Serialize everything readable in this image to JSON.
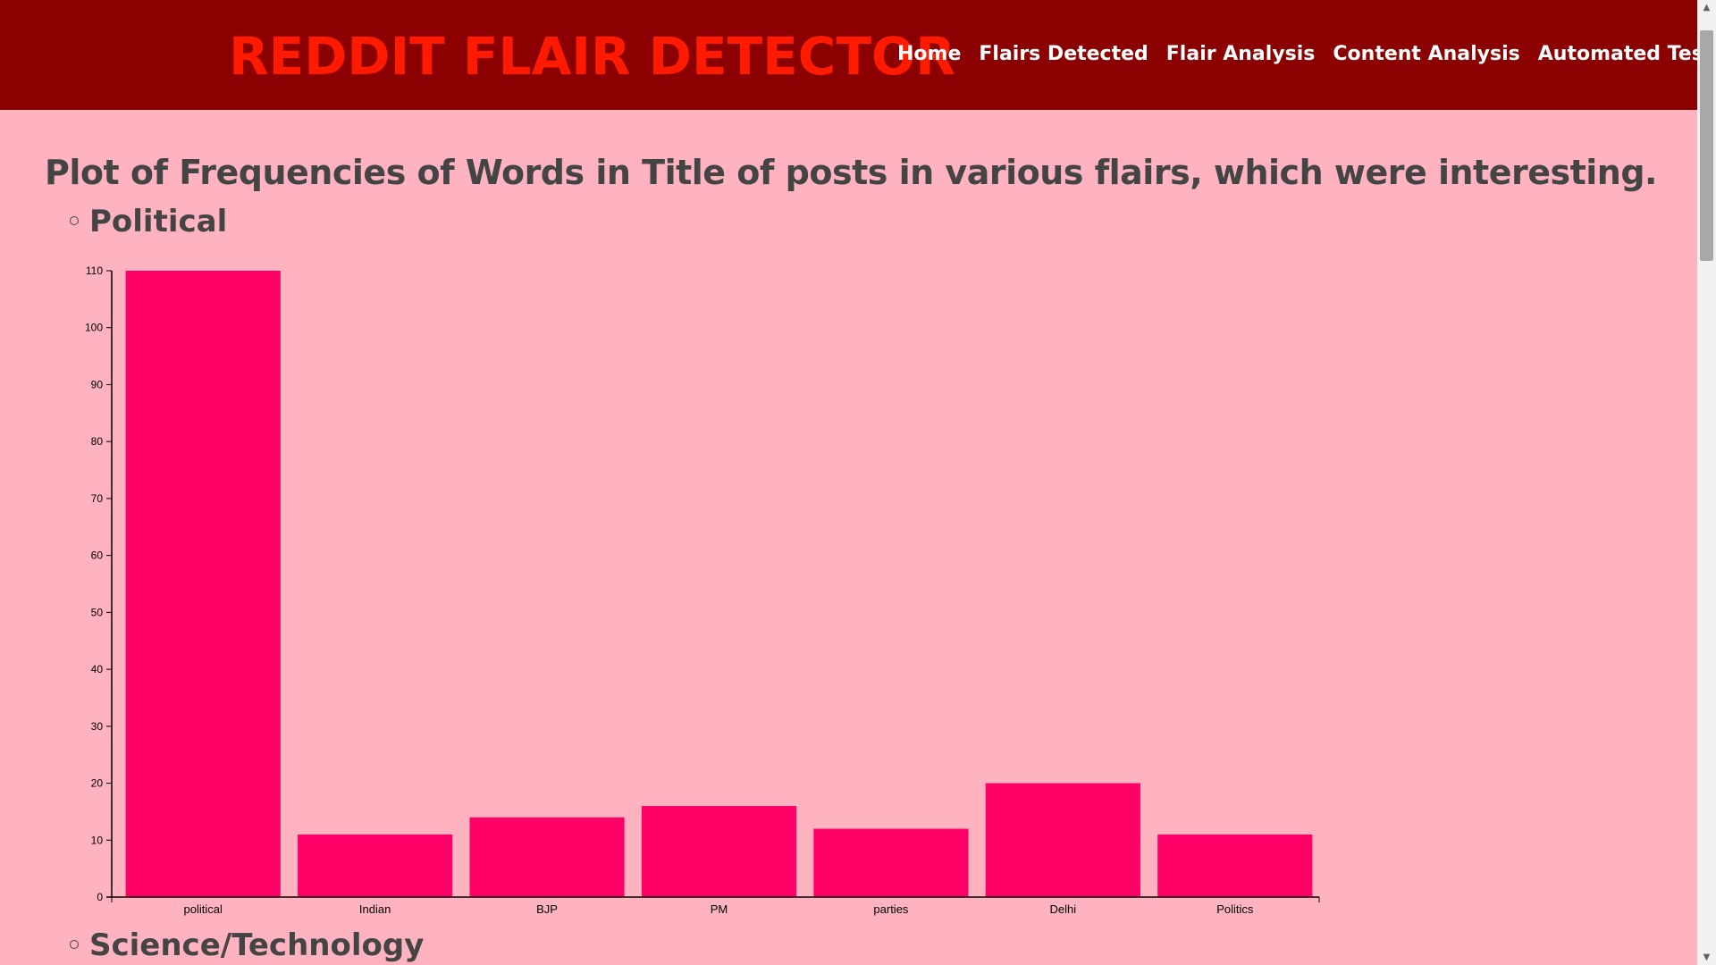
{
  "header": {
    "brand": "REDDIT FLAIR DETECTOR",
    "nav": [
      "Home",
      "Flairs Detected",
      "Flair Analysis",
      "Content Analysis",
      "Automated Testing"
    ]
  },
  "main": {
    "heading": "Plot of Frequencies of Words in Title of posts in various flairs, which were interesting.",
    "sections": [
      "Political",
      "Science/Technology"
    ]
  },
  "colors": {
    "header_bg": "#8b0000",
    "brand": "#ff1a00",
    "page_bg": "#ffb3c0",
    "bar": "#ff0066",
    "text": "#444444"
  },
  "chart_data": {
    "type": "bar",
    "title": "",
    "xlabel": "",
    "ylabel": "",
    "categories": [
      "political",
      "Indian",
      "BJP",
      "PM",
      "parties",
      "Delhi",
      "Politics"
    ],
    "values": [
      110,
      11,
      14,
      16,
      12,
      20,
      11
    ],
    "ylim": [
      0,
      110
    ],
    "yticks": [
      0,
      10,
      20,
      30,
      40,
      50,
      60,
      70,
      80,
      90,
      100,
      110
    ],
    "grid": false
  },
  "icons": {
    "scroll_up": "scroll-up-arrow-icon",
    "scroll_down": "scroll-down-arrow-icon",
    "bullet": "circle-bullet-icon"
  }
}
